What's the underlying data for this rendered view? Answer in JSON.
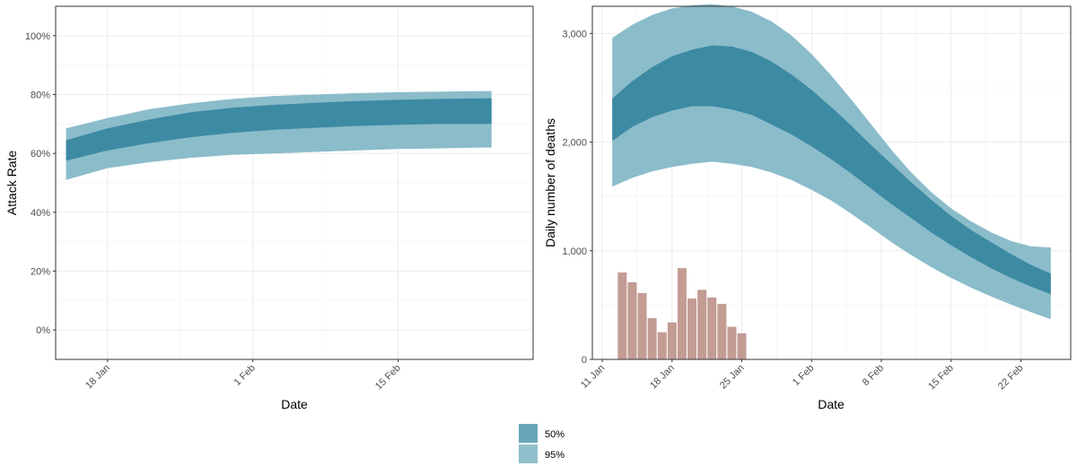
{
  "colors": {
    "band95": "#8bbcca",
    "band50": "#3d8aa3",
    "bars": "#c39c94",
    "grid_major": "#ebebeb",
    "grid_minor": "#f5f5f5",
    "panel_border": "#333333"
  },
  "legend": {
    "items": [
      {
        "label": "50%",
        "color": "#6aa6bb"
      },
      {
        "label": "95%",
        "color": "#8fbfcc"
      }
    ]
  },
  "chart_data": [
    {
      "type": "area",
      "xlabel": "Date",
      "ylabel": "Attack Rate",
      "x_range": [
        "2020-01-13",
        "2020-02-28"
      ],
      "ylim": [
        -0.1,
        1.1
      ],
      "y_format": "percent",
      "x_ticks": [
        {
          "date": "2020-01-18",
          "label": "18 Jan"
        },
        {
          "date": "2020-02-01",
          "label": "1 Feb"
        },
        {
          "date": "2020-02-15",
          "label": "15 Feb"
        }
      ],
      "y_ticks": [
        {
          "value": 0.0,
          "label": "0%"
        },
        {
          "value": 0.2,
          "label": "20%"
        },
        {
          "value": 0.4,
          "label": "40%"
        },
        {
          "value": 0.6,
          "label": "60%"
        },
        {
          "value": 0.8,
          "label": "80%"
        },
        {
          "value": 1.0,
          "label": "100%"
        }
      ],
      "grid": true,
      "series": [
        {
          "band": "95%",
          "x": [
            "2020-01-14",
            "2020-01-18",
            "2020-01-22",
            "2020-01-26",
            "2020-01-30",
            "2020-02-03",
            "2020-02-07",
            "2020-02-11",
            "2020-02-15",
            "2020-02-19",
            "2020-02-23",
            "2020-02-24"
          ],
          "lower": [
            0.51,
            0.55,
            0.57,
            0.585,
            0.595,
            0.6,
            0.605,
            0.61,
            0.615,
            0.617,
            0.62,
            0.62
          ],
          "upper": [
            0.685,
            0.72,
            0.75,
            0.77,
            0.785,
            0.795,
            0.8,
            0.805,
            0.808,
            0.81,
            0.812,
            0.812
          ]
        },
        {
          "band": "50%",
          "x": [
            "2020-01-14",
            "2020-01-18",
            "2020-01-22",
            "2020-01-26",
            "2020-01-30",
            "2020-02-03",
            "2020-02-07",
            "2020-02-11",
            "2020-02-15",
            "2020-02-19",
            "2020-02-23",
            "2020-02-24"
          ],
          "lower": [
            0.575,
            0.61,
            0.635,
            0.655,
            0.67,
            0.68,
            0.687,
            0.693,
            0.697,
            0.7,
            0.7,
            0.7
          ],
          "upper": [
            0.645,
            0.685,
            0.715,
            0.74,
            0.755,
            0.765,
            0.772,
            0.778,
            0.782,
            0.785,
            0.787,
            0.787
          ]
        }
      ]
    },
    {
      "type": "area",
      "xlabel": "Date",
      "ylabel": "Daily number of deaths",
      "x_range": [
        "2020-01-10",
        "2020-02-27"
      ],
      "ylim": [
        0,
        3250
      ],
      "x_ticks": [
        {
          "date": "2020-01-11",
          "label": "11 Jan"
        },
        {
          "date": "2020-01-18",
          "label": "18 Jan"
        },
        {
          "date": "2020-01-25",
          "label": "25 Jan"
        },
        {
          "date": "2020-02-01",
          "label": "1 Feb"
        },
        {
          "date": "2020-02-08",
          "label": "8 Feb"
        },
        {
          "date": "2020-02-15",
          "label": "15 Feb"
        },
        {
          "date": "2020-02-22",
          "label": "22 Feb"
        }
      ],
      "y_ticks": [
        {
          "value": 0,
          "label": "0"
        },
        {
          "value": 1000,
          "label": "1,000"
        },
        {
          "value": 2000,
          "label": "2,000"
        },
        {
          "value": 3000,
          "label": "3,000"
        }
      ],
      "grid": true,
      "series": [
        {
          "band": "95%",
          "x": [
            "2020-01-12",
            "2020-01-14",
            "2020-01-16",
            "2020-01-18",
            "2020-01-20",
            "2020-01-22",
            "2020-01-24",
            "2020-01-26",
            "2020-01-28",
            "2020-01-30",
            "2020-02-01",
            "2020-02-03",
            "2020-02-05",
            "2020-02-07",
            "2020-02-09",
            "2020-02-11",
            "2020-02-13",
            "2020-02-15",
            "2020-02-17",
            "2020-02-19",
            "2020-02-21",
            "2020-02-23",
            "2020-02-25"
          ],
          "lower": [
            1590,
            1670,
            1730,
            1770,
            1800,
            1820,
            1800,
            1770,
            1720,
            1650,
            1560,
            1460,
            1340,
            1210,
            1080,
            960,
            850,
            750,
            660,
            580,
            505,
            435,
            370
          ],
          "upper": [
            2960,
            3080,
            3170,
            3230,
            3260,
            3270,
            3250,
            3200,
            3110,
            2980,
            2810,
            2610,
            2390,
            2160,
            1930,
            1720,
            1540,
            1390,
            1270,
            1170,
            1090,
            1040,
            1030
          ]
        },
        {
          "band": "50%",
          "x": [
            "2020-01-12",
            "2020-01-14",
            "2020-01-16",
            "2020-01-18",
            "2020-01-20",
            "2020-01-22",
            "2020-01-24",
            "2020-01-26",
            "2020-01-28",
            "2020-01-30",
            "2020-02-01",
            "2020-02-03",
            "2020-02-05",
            "2020-02-07",
            "2020-02-09",
            "2020-02-11",
            "2020-02-13",
            "2020-02-15",
            "2020-02-17",
            "2020-02-19",
            "2020-02-21",
            "2020-02-23",
            "2020-02-25"
          ],
          "lower": [
            2010,
            2140,
            2230,
            2290,
            2330,
            2330,
            2300,
            2250,
            2160,
            2070,
            1960,
            1840,
            1710,
            1570,
            1430,
            1300,
            1170,
            1050,
            940,
            840,
            750,
            670,
            600
          ],
          "upper": [
            2400,
            2560,
            2690,
            2790,
            2850,
            2890,
            2880,
            2830,
            2740,
            2620,
            2480,
            2320,
            2150,
            1970,
            1800,
            1630,
            1470,
            1320,
            1190,
            1080,
            970,
            870,
            790
          ]
        }
      ],
      "bars": {
        "x": [
          "2020-01-13",
          "2020-01-14",
          "2020-01-15",
          "2020-01-16",
          "2020-01-17",
          "2020-01-18",
          "2020-01-19",
          "2020-01-20",
          "2020-01-21",
          "2020-01-22",
          "2020-01-23",
          "2020-01-24",
          "2020-01-25"
        ],
        "values": [
          800,
          710,
          610,
          380,
          250,
          340,
          840,
          560,
          640,
          570,
          510,
          300,
          240
        ]
      }
    }
  ]
}
